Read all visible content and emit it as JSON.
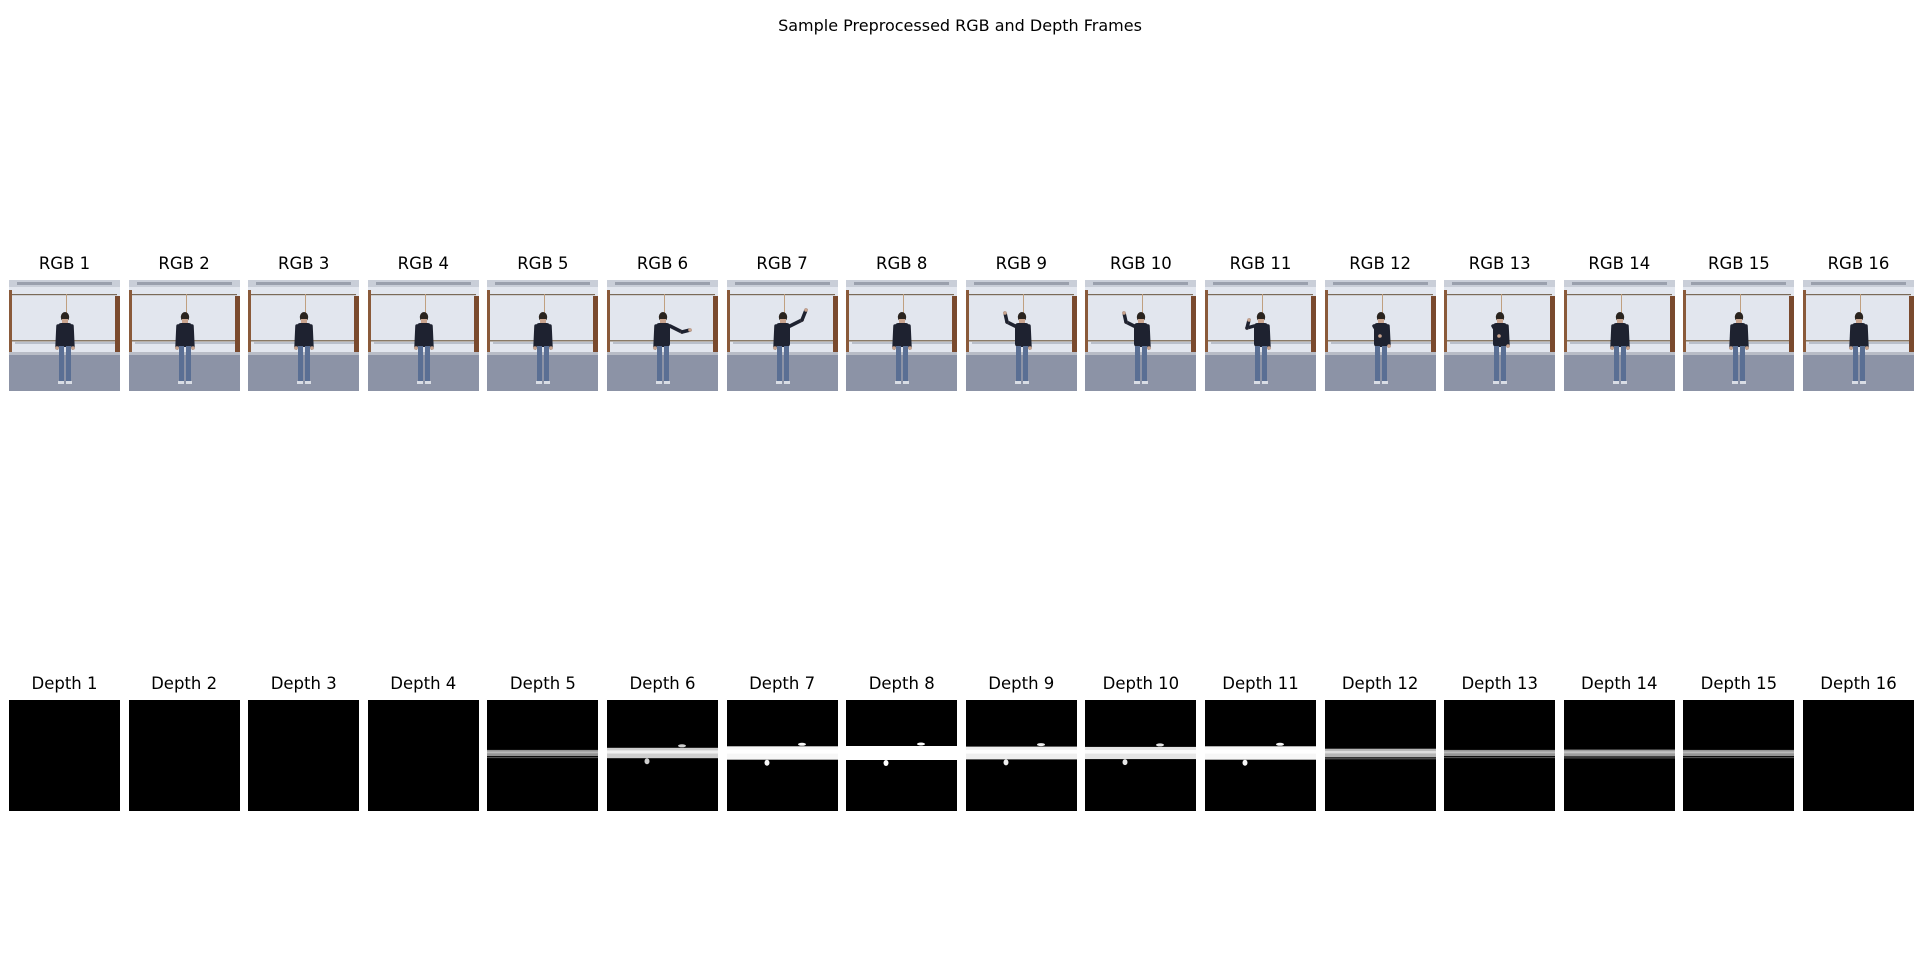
{
  "figure": {
    "title": "Sample Preprocessed RGB and Depth Frames"
  },
  "rgb_row": {
    "labels": [
      "RGB 1",
      "RGB 2",
      "RGB 3",
      "RGB 4",
      "RGB 5",
      "RGB 6",
      "RGB 7",
      "RGB 8",
      "RGB 9",
      "RGB 10",
      "RGB 11",
      "RGB 12",
      "RGB 13",
      "RGB 14",
      "RGB 15",
      "RGB 16"
    ],
    "arm_pose": [
      "down",
      "down",
      "down",
      "down",
      "down",
      "right-out",
      "right-up",
      "down",
      "left-up",
      "left-up",
      "left-out",
      "chest",
      "chest",
      "down",
      "down",
      "down"
    ]
  },
  "depth_row": {
    "labels": [
      "Depth 1",
      "Depth 2",
      "Depth 3",
      "Depth 4",
      "Depth 5",
      "Depth 6",
      "Depth 7",
      "Depth 8",
      "Depth 9",
      "Depth 10",
      "Depth 11",
      "Depth 12",
      "Depth 13",
      "Depth 14",
      "Depth 15",
      "Depth 16"
    ],
    "band_intensity": [
      0,
      0,
      0,
      0,
      0.35,
      0.7,
      0.95,
      1.0,
      0.9,
      0.85,
      0.95,
      0.55,
      0.35,
      0.4,
      0.35,
      0
    ]
  },
  "colors": {
    "background": "#ffffff",
    "depth_background": "#000000",
    "wall": "#e2e6ee",
    "floor": "#8c93a6",
    "shirt": "#1e2230",
    "jeans": "#5a6f94",
    "skin": "#c9a48e"
  }
}
